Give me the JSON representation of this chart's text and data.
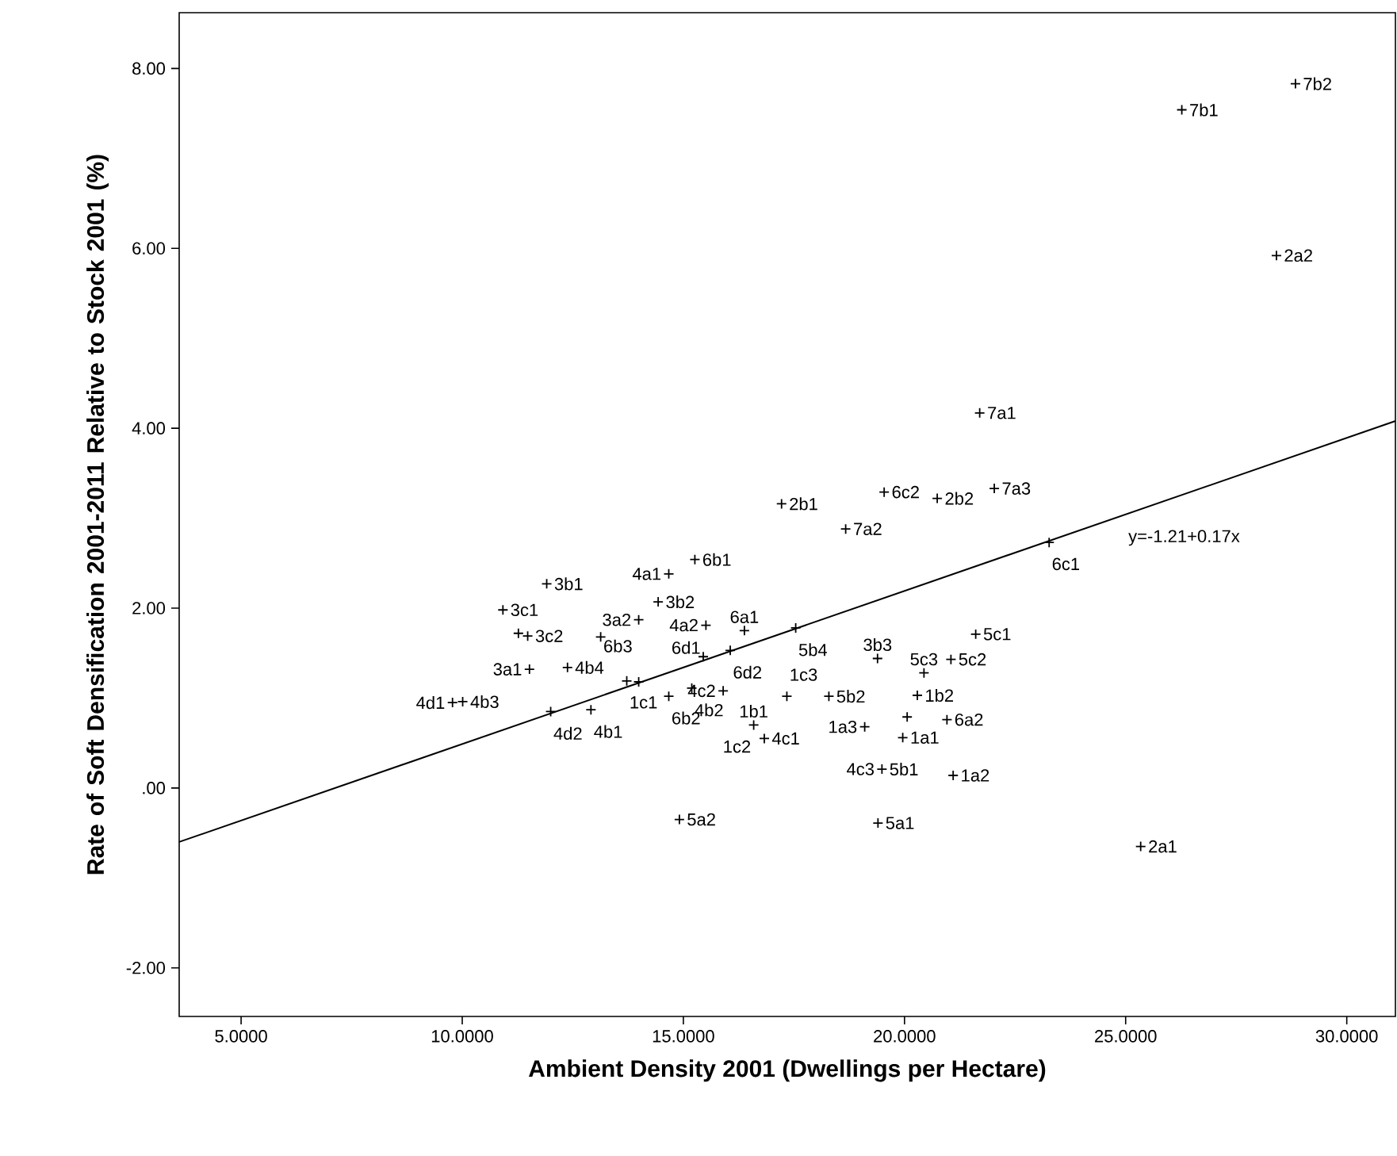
{
  "chart_data": {
    "type": "scatter",
    "xlabel": "Ambient Density 2001 (Dwellings per Hectare)",
    "ylabel": "Rate of Soft Densification 2001-2011 Relative to Stock 2001 (%)",
    "xlim": [
      3.6,
      31.1
    ],
    "ylim": [
      -2.54,
      8.62
    ],
    "xticks": [
      {
        "value": 5,
        "label": "5.0000"
      },
      {
        "value": 10,
        "label": "10.0000"
      },
      {
        "value": 15,
        "label": "15.0000"
      },
      {
        "value": 20,
        "label": "20.0000"
      },
      {
        "value": 25,
        "label": "25.0000"
      },
      {
        "value": 30,
        "label": "30.0000"
      }
    ],
    "yticks": [
      {
        "value": -2,
        "label": "-2.00"
      },
      {
        "value": 0,
        "label": ".00"
      },
      {
        "value": 2,
        "label": "2.00"
      },
      {
        "value": 4,
        "label": "4.00"
      },
      {
        "value": 6,
        "label": "6.00"
      },
      {
        "value": 8,
        "label": "8.00"
      }
    ],
    "grid": false,
    "series": [
      {
        "marker": "cross",
        "color": "#000000",
        "x": [
          10.92,
          11.91,
          11.48,
          11.27,
          11.52,
          12.38,
          14.43,
          14.67,
          15.26,
          13.99,
          13.13,
          15.51,
          15.45,
          16.06,
          13.72,
          13.99,
          9.78,
          10.01,
          12.0,
          12.91,
          14.67,
          15.19,
          15.9,
          16.59,
          16.83,
          17.34,
          18.29,
          16.38,
          17.54,
          19.39,
          20.44,
          21.05,
          21.61,
          20.29,
          20.96,
          19.1,
          20.06,
          19.96,
          21.1,
          19.49,
          19.4,
          14.91,
          18.67,
          23.27,
          21.7,
          17.22,
          19.54,
          20.74,
          22.03,
          26.27,
          28.84,
          28.41,
          25.34
        ],
        "values": [
          1.98,
          2.27,
          1.69,
          1.72,
          1.32,
          1.34,
          2.07,
          2.38,
          2.54,
          1.87,
          1.68,
          1.81,
          1.46,
          1.53,
          1.19,
          1.18,
          0.95,
          0.96,
          0.85,
          0.87,
          1.02,
          1.11,
          1.08,
          0.7,
          0.55,
          1.02,
          1.02,
          1.75,
          1.78,
          1.44,
          1.28,
          1.43,
          1.71,
          1.03,
          0.76,
          0.68,
          0.79,
          0.56,
          0.14,
          0.21,
          -0.39,
          -0.35,
          2.88,
          2.73,
          4.17,
          3.16,
          3.29,
          3.22,
          3.33,
          7.54,
          7.83,
          5.92,
          -0.65
        ]
      },
      {
        "type": "line",
        "color": "#000000",
        "x": [
          3.6,
          31.1
        ],
        "values": [
          -0.6,
          4.08
        ]
      }
    ],
    "annotations": [
      {
        "text": "3c1",
        "x": 10.92,
        "y": 1.98
      },
      {
        "text": "3b1",
        "x": 11.91,
        "y": 2.27
      },
      {
        "text": "3c2",
        "x": 11.48,
        "y": 1.69
      },
      {
        "text": "3a1",
        "x": 11.52,
        "y": 1.32
      },
      {
        "text": "4b4",
        "x": 12.38,
        "y": 1.34
      },
      {
        "text": "3b2",
        "x": 14.43,
        "y": 2.07
      },
      {
        "text": "4a1",
        "x": 14.67,
        "y": 2.38
      },
      {
        "text": "6b1",
        "x": 15.26,
        "y": 2.54
      },
      {
        "text": "3a2",
        "x": 13.99,
        "y": 1.87
      },
      {
        "text": "6b3",
        "x": 13.13,
        "y": 1.68
      },
      {
        "text": "4a2",
        "x": 15.51,
        "y": 1.81
      },
      {
        "text": "6d1",
        "x": 15.45,
        "y": 1.46
      },
      {
        "text": "6d2",
        "x": 16.06,
        "y": 1.53
      },
      {
        "text": "1c1",
        "x": 13.72,
        "y": 1.19
      },
      {
        "text": "4d1",
        "x": 9.78,
        "y": 0.95
      },
      {
        "text": "4b3",
        "x": 10.01,
        "y": 0.96
      },
      {
        "text": "4d2",
        "x": 12.0,
        "y": 0.85
      },
      {
        "text": "4b1",
        "x": 12.91,
        "y": 0.87
      },
      {
        "text": "6b2",
        "x": 14.67,
        "y": 1.02
      },
      {
        "text": "4b2",
        "x": 15.19,
        "y": 1.11
      },
      {
        "text": "4c2",
        "x": 15.9,
        "y": 1.08
      },
      {
        "text": "1b1",
        "x": 16.59,
        "y": 0.7
      },
      {
        "text": "1c2",
        "x": 16.59,
        "y": 0.7
      },
      {
        "text": "4c1",
        "x": 16.83,
        "y": 0.55
      },
      {
        "text": "1c3",
        "x": 17.34,
        "y": 1.02
      },
      {
        "text": "5b2",
        "x": 18.29,
        "y": 1.02
      },
      {
        "text": "6a1",
        "x": 16.38,
        "y": 1.75
      },
      {
        "text": "5b4",
        "x": 17.54,
        "y": 1.78
      },
      {
        "text": "3b3",
        "x": 19.39,
        "y": 1.44
      },
      {
        "text": "5c3",
        "x": 20.44,
        "y": 1.28
      },
      {
        "text": "5c2",
        "x": 21.05,
        "y": 1.43
      },
      {
        "text": "5c1",
        "x": 21.61,
        "y": 1.71
      },
      {
        "text": "1b2",
        "x": 20.29,
        "y": 1.03
      },
      {
        "text": "6a2",
        "x": 20.96,
        "y": 0.76
      },
      {
        "text": "1a3",
        "x": 19.1,
        "y": 0.68
      },
      {
        "text": "1a1",
        "x": 19.96,
        "y": 0.56
      },
      {
        "text": "1a2",
        "x": 21.1,
        "y": 0.14
      },
      {
        "text": "5b1",
        "x": 19.49,
        "y": 0.21
      },
      {
        "text": "4c3",
        "x": 19.49,
        "y": 0.21
      },
      {
        "text": "5a1",
        "x": 19.4,
        "y": -0.39
      },
      {
        "text": "5a2",
        "x": 14.91,
        "y": -0.35
      },
      {
        "text": "7a2",
        "x": 18.67,
        "y": 2.88
      },
      {
        "text": "6c1",
        "x": 23.27,
        "y": 2.73
      },
      {
        "text": "7a1",
        "x": 21.7,
        "y": 4.17
      },
      {
        "text": "2b1",
        "x": 17.22,
        "y": 3.16
      },
      {
        "text": "6c2",
        "x": 19.54,
        "y": 3.29
      },
      {
        "text": "2b2",
        "x": 20.74,
        "y": 3.22
      },
      {
        "text": "7a3",
        "x": 22.03,
        "y": 3.33
      },
      {
        "text": "7b1",
        "x": 26.27,
        "y": 7.54
      },
      {
        "text": "7b2",
        "x": 28.84,
        "y": 7.83
      },
      {
        "text": "2a2",
        "x": 28.41,
        "y": 5.92
      },
      {
        "text": "2a1",
        "x": 25.34,
        "y": -0.65
      },
      {
        "text": "y=-1.21+0.17x",
        "x": 25.0,
        "y": 3.04
      }
    ]
  }
}
